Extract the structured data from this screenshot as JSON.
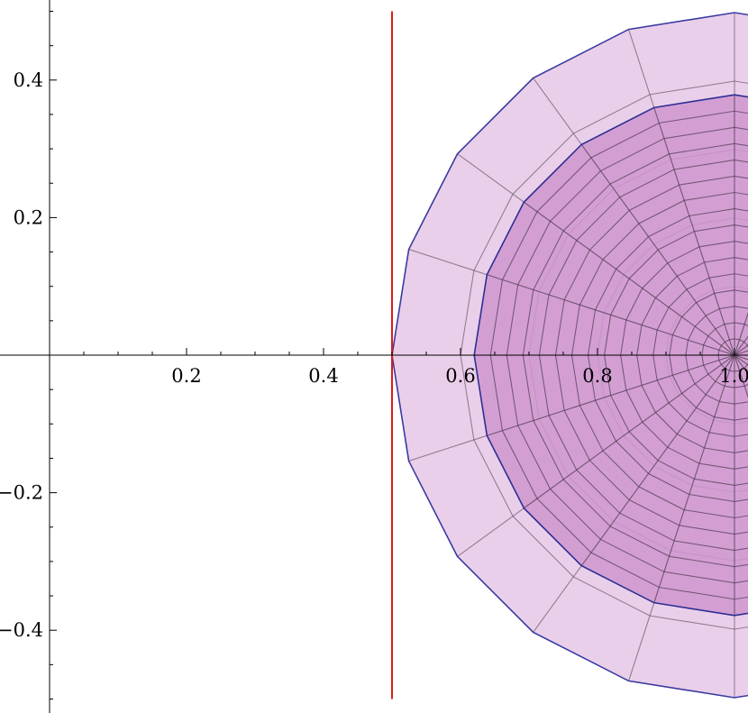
{
  "chart_data": {
    "type": "area",
    "title": "",
    "xlabel": "",
    "ylabel": "",
    "xlim": [
      -0.07,
      1.03
    ],
    "ylim": [
      -0.52,
      0.52
    ],
    "x_ticks": [
      {
        "value": 0.2,
        "label": "0.2"
      },
      {
        "value": 0.4,
        "label": "0.4"
      },
      {
        "value": 0.6,
        "label": "0.6"
      },
      {
        "value": 0.8,
        "label": "0.8"
      },
      {
        "value": 1.0,
        "label": "1.0"
      }
    ],
    "y_ticks": [
      {
        "value": 0.4,
        "label": "0.4"
      },
      {
        "value": 0.2,
        "label": "0.2"
      },
      {
        "value": -0.2,
        "label": "−0.2"
      },
      {
        "value": -0.4,
        "label": "−0.4"
      }
    ],
    "minor_tick_step": 0.05,
    "series": [
      {
        "shape": "disk",
        "center": [
          1.0,
          0.0
        ],
        "radius": 0.5,
        "radial_rings": 5,
        "angular_spokes": 20,
        "fill": "#e6c7e6",
        "edge": "#3a3aa0",
        "mesh": "#6e5a6e"
      },
      {
        "shape": "disk",
        "center": [
          1.0,
          0.0
        ],
        "radius": 0.38,
        "radial_rings": 16,
        "angular_spokes": 20,
        "fill": "#cf96cf",
        "edge": "#2e2e94",
        "mesh": "#4e3a4e"
      }
    ],
    "reference_lines": [
      {
        "orientation": "vertical",
        "x": 0.5,
        "y_range": [
          -0.5,
          0.5
        ],
        "color": "#dd1c1c"
      }
    ],
    "grid": false,
    "legend": "none"
  }
}
